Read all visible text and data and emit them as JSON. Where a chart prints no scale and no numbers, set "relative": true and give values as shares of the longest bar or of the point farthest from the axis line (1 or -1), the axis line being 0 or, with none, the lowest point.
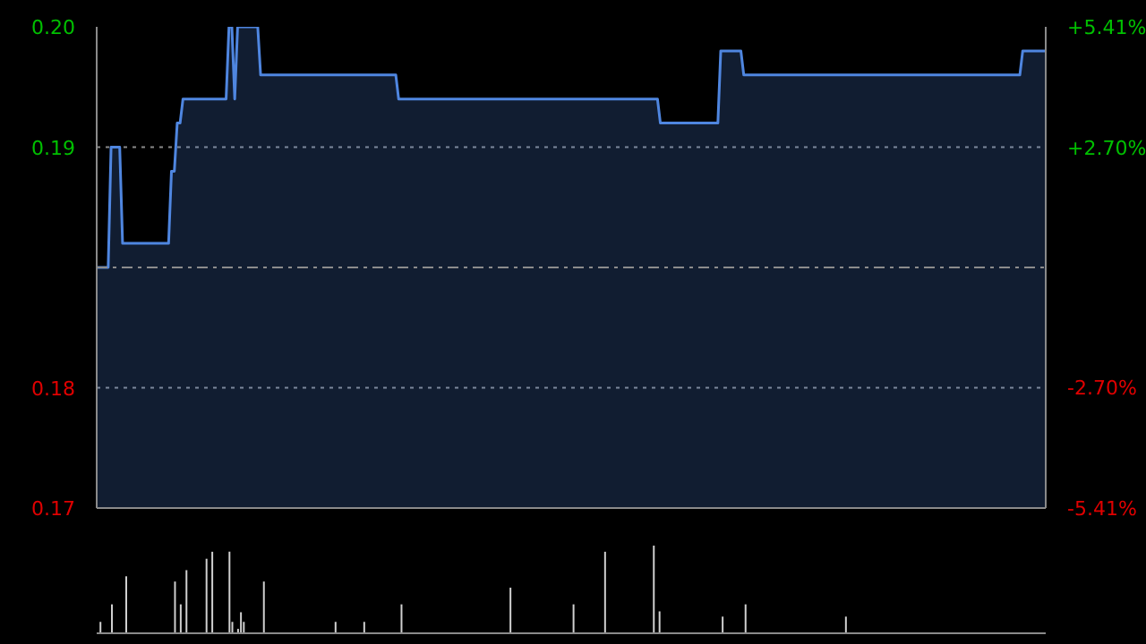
{
  "chart_data": [
    {
      "type": "area",
      "categories": [
        null,
        null,
        null,
        null,
        null,
        null,
        null,
        null,
        null,
        null,
        null,
        null,
        null,
        null,
        null,
        null,
        null,
        null,
        null,
        null,
        null,
        null,
        null,
        null,
        null,
        null,
        null,
        null,
        null,
        null,
        null,
        null,
        null,
        null,
        null,
        null,
        null,
        null,
        null,
        null,
        null,
        null,
        null,
        null,
        null,
        null,
        null,
        null,
        null,
        null,
        null,
        null,
        null,
        null,
        null,
        null,
        null,
        null,
        null,
        null,
        null,
        null,
        null,
        null,
        null,
        null,
        null,
        null,
        null,
        null,
        null,
        null,
        null,
        null,
        null,
        null,
        null,
        null,
        null,
        null,
        null,
        null,
        null,
        null,
        null,
        null,
        null,
        null,
        null,
        null,
        null,
        null,
        null,
        null,
        null,
        null,
        null,
        null,
        null,
        null,
        null,
        null,
        null,
        null,
        null,
        null,
        null,
        null,
        null,
        null,
        null,
        null,
        null,
        null,
        null,
        null,
        null,
        null,
        null,
        null,
        null,
        null,
        null,
        null,
        null,
        null,
        null,
        null,
        null,
        null,
        null,
        null,
        null,
        null,
        null,
        null,
        null,
        null,
        null,
        null,
        null,
        null,
        null,
        null,
        null,
        null,
        null,
        null,
        null,
        null,
        null,
        null,
        null,
        null,
        null,
        null,
        null,
        null,
        null,
        null,
        null,
        null,
        null,
        null,
        null,
        null,
        null,
        null,
        null,
        null,
        null,
        null,
        null,
        null,
        null,
        null,
        null,
        null,
        null,
        null,
        null,
        null,
        null,
        null,
        null,
        null,
        null,
        null,
        null,
        null,
        null,
        null,
        null,
        null,
        null,
        null,
        null,
        null,
        null,
        null,
        null,
        null,
        null,
        null,
        null,
        null,
        null,
        null,
        null,
        null,
        null,
        null,
        null,
        null,
        null,
        null,
        null,
        null,
        null,
        null,
        null,
        null,
        null,
        null,
        null,
        null,
        null,
        null,
        null,
        null,
        null,
        null,
        null,
        null,
        null,
        null,
        null,
        null,
        null,
        null,
        null,
        null,
        null,
        null,
        null,
        null,
        null,
        null,
        null,
        null,
        null,
        null,
        null,
        null,
        null,
        null,
        null,
        null,
        null,
        null,
        null,
        null,
        null,
        null,
        null,
        null,
        null,
        null,
        null,
        null,
        null,
        null,
        null,
        null,
        null,
        null,
        null,
        null,
        null,
        null,
        null,
        null,
        null,
        null,
        null,
        null,
        null,
        null,
        null,
        null,
        null,
        null,
        null,
        null,
        null,
        null,
        null,
        null,
        null,
        null,
        null,
        null,
        null,
        null,
        null,
        null,
        null,
        null,
        null,
        null,
        null,
        null,
        null,
        null,
        null,
        null,
        null,
        null,
        null,
        null,
        null,
        null,
        null,
        null,
        null,
        null,
        null,
        null,
        null,
        null,
        null
      ],
      "series": [
        {
          "color": "#4f86e0",
          "values": [
            0.185,
            0.185,
            0.185,
            0.185,
            0.185,
            0.19,
            0.19,
            0.19,
            0.19,
            0.186,
            0.186,
            0.186,
            0.186,
            0.186,
            0.186,
            0.186,
            0.186,
            0.186,
            0.186,
            0.186,
            0.186,
            0.186,
            0.186,
            0.186,
            0.186,
            0.186,
            0.189,
            0.189,
            0.191,
            0.191,
            0.192,
            0.192,
            0.192,
            0.192,
            0.192,
            0.192,
            0.192,
            0.192,
            0.192,
            0.192,
            0.192,
            0.192,
            0.192,
            0.192,
            0.192,
            0.192,
            0.195,
            0.195,
            0.192,
            0.195,
            0.195,
            0.195,
            0.195,
            0.195,
            0.195,
            0.195,
            0.195,
            0.193,
            0.193,
            0.193,
            0.193,
            0.193,
            0.193,
            0.193,
            0.193,
            0.193,
            0.193,
            0.193,
            0.193,
            0.193,
            0.193,
            0.193,
            0.193,
            0.193,
            0.193,
            0.193,
            0.193,
            0.193,
            0.193,
            0.193,
            0.193,
            0.193,
            0.193,
            0.193,
            0.193,
            0.193,
            0.193,
            0.193,
            0.193,
            0.193,
            0.193,
            0.193,
            0.193,
            0.193,
            0.193,
            0.193,
            0.193,
            0.193,
            0.193,
            0.193,
            0.193,
            0.193,
            0.193,
            0.193,
            0.193,
            0.192,
            0.192,
            0.192,
            0.192,
            0.192,
            0.192,
            0.192,
            0.192,
            0.192,
            0.192,
            0.192,
            0.192,
            0.192,
            0.192,
            0.192,
            0.192,
            0.192,
            0.192,
            0.192,
            0.192,
            0.192,
            0.192,
            0.192,
            0.192,
            0.192,
            0.192,
            0.192,
            0.192,
            0.192,
            0.192,
            0.192,
            0.192,
            0.192,
            0.192,
            0.192,
            0.192,
            0.192,
            0.192,
            0.192,
            0.192,
            0.192,
            0.192,
            0.192,
            0.192,
            0.192,
            0.192,
            0.192,
            0.192,
            0.192,
            0.192,
            0.192,
            0.192,
            0.192,
            0.192,
            0.192,
            0.192,
            0.192,
            0.192,
            0.192,
            0.192,
            0.192,
            0.192,
            0.192,
            0.192,
            0.192,
            0.192,
            0.192,
            0.192,
            0.192,
            0.192,
            0.192,
            0.192,
            0.192,
            0.192,
            0.192,
            0.192,
            0.192,
            0.192,
            0.192,
            0.192,
            0.192,
            0.192,
            0.192,
            0.192,
            0.192,
            0.192,
            0.192,
            0.192,
            0.192,
            0.192,
            0.192,
            0.191,
            0.191,
            0.191,
            0.191,
            0.191,
            0.191,
            0.191,
            0.191,
            0.191,
            0.191,
            0.191,
            0.191,
            0.191,
            0.191,
            0.191,
            0.191,
            0.191,
            0.191,
            0.191,
            0.191,
            0.191,
            0.194,
            0.194,
            0.194,
            0.194,
            0.194,
            0.194,
            0.194,
            0.194,
            0.193,
            0.193,
            0.193,
            0.193,
            0.193,
            0.193,
            0.193,
            0.193,
            0.193,
            0.193,
            0.193,
            0.193,
            0.193,
            0.193,
            0.193,
            0.193,
            0.193,
            0.193,
            0.193,
            0.193,
            0.193,
            0.193,
            0.193,
            0.193,
            0.193,
            0.193,
            0.193,
            0.193,
            0.193,
            0.193,
            0.193,
            0.193,
            0.193,
            0.193,
            0.193,
            0.193,
            0.193,
            0.193,
            0.193,
            0.193,
            0.193,
            0.193,
            0.193,
            0.193,
            0.193,
            0.193,
            0.193,
            0.193,
            0.193,
            0.193,
            0.193,
            0.193,
            0.193,
            0.193,
            0.193,
            0.193,
            0.193,
            0.193,
            0.193,
            0.193,
            0.193,
            0.193,
            0.193,
            0.193,
            0.193,
            0.193,
            0.193,
            0.193,
            0.193,
            0.193,
            0.193,
            0.193,
            0.193,
            0.193,
            0.193,
            0.193,
            0.193,
            0.193,
            0.193,
            0.193,
            0.193,
            0.193,
            0.193,
            0.193,
            0.193,
            0.193,
            0.193,
            0.193,
            0.193,
            0.193,
            0.193,
            0.193,
            0.193,
            0.193,
            0.193,
            0.193,
            0.193,
            0.194,
            0.194,
            0.194,
            0.194,
            0.194,
            0.194,
            0.194,
            0.194,
            0.194
          ]
        }
      ],
      "ylim": [
        0.175,
        0.195
      ],
      "yticks": [
        {
          "value": 0.175,
          "label": "0.17"
        },
        0.18,
        0.19,
        {
          "value": 0.195,
          "label": "0.20"
        }
      ],
      "y2lim": [
        -5.41,
        5.41
      ],
      "y2ticks": [
        {
          "value": -5.41,
          "label": "-5.41%"
        },
        {
          "value": -2.7,
          "label": "-2.70%"
        },
        {
          "value": 2.7,
          "label": "+2.70%"
        },
        {
          "value": 5.41,
          "label": "+5.41%"
        }
      ],
      "ref_lines": [
        {
          "axis": "y",
          "value": 0.185,
          "color": "#8c8c8c",
          "line_style": "dashed"
        }
      ],
      "grid": "y"
    },
    {
      "type": "bar",
      "relative": true,
      "categories": [
        null,
        null,
        null,
        null,
        null,
        null,
        null,
        null,
        null,
        null,
        null,
        null,
        null,
        null,
        null,
        null,
        null,
        null,
        null,
        null,
        null,
        null,
        null,
        null,
        null,
        null,
        null,
        null,
        null,
        null,
        null,
        null,
        null,
        null,
        null,
        null,
        null,
        null,
        null,
        null,
        null,
        null,
        null,
        null,
        null,
        null,
        null,
        null,
        null,
        null,
        null,
        null,
        null,
        null,
        null,
        null,
        null,
        null,
        null,
        null,
        null,
        null,
        null,
        null,
        null,
        null,
        null,
        null,
        null,
        null,
        null,
        null,
        null,
        null,
        null,
        null,
        null,
        null,
        null,
        null,
        null,
        null,
        null,
        null,
        null,
        null,
        null,
        null,
        null,
        null,
        null,
        null,
        null,
        null,
        null,
        null,
        null,
        null,
        null,
        null,
        null,
        null,
        null,
        null,
        null,
        null,
        null,
        null,
        null,
        null,
        null,
        null,
        null,
        null,
        null,
        null,
        null,
        null,
        null,
        null,
        null,
        null,
        null,
        null,
        null,
        null,
        null,
        null,
        null,
        null,
        null,
        null,
        null,
        null,
        null,
        null,
        null,
        null,
        null,
        null,
        null,
        null,
        null,
        null,
        null,
        null,
        null,
        null,
        null,
        null,
        null,
        null,
        null,
        null,
        null,
        null,
        null,
        null,
        null,
        null,
        null,
        null,
        null,
        null,
        null,
        null,
        null,
        null,
        null,
        null,
        null,
        null,
        null,
        null,
        null,
        null,
        null,
        null,
        null,
        null,
        null,
        null,
        null,
        null,
        null,
        null,
        null,
        null,
        null,
        null,
        null,
        null,
        null,
        null,
        null,
        null,
        null,
        null,
        null,
        null,
        null,
        null,
        null,
        null,
        null,
        null,
        null,
        null,
        null,
        null,
        null,
        null,
        null,
        null,
        null,
        null,
        null,
        null,
        null,
        null,
        null,
        null,
        null,
        null,
        null,
        null,
        null,
        null,
        null,
        null,
        null,
        null,
        null,
        null,
        null,
        null,
        null,
        null,
        null,
        null,
        null,
        null,
        null,
        null,
        null,
        null,
        null,
        null,
        null,
        null,
        null,
        null,
        null,
        null,
        null,
        null,
        null,
        null,
        null,
        null,
        null,
        null,
        null,
        null,
        null,
        null,
        null,
        null,
        null,
        null,
        null,
        null,
        null,
        null,
        null,
        null,
        null,
        null,
        null,
        null,
        null,
        null,
        null,
        null,
        null,
        null,
        null,
        null,
        null,
        null,
        null,
        null,
        null,
        null,
        null,
        null,
        null,
        null,
        null,
        null,
        null,
        null,
        null,
        null,
        null,
        null,
        null,
        null,
        null,
        null,
        null,
        null,
        null,
        null,
        null,
        null,
        null,
        null,
        null,
        null,
        null,
        null,
        null,
        null,
        null,
        null,
        null,
        null,
        null,
        null,
        null
      ],
      "values": [
        0,
        0.13,
        0,
        0,
        0,
        0.33,
        0,
        0,
        0,
        0,
        0.65,
        0,
        0,
        0,
        0,
        0,
        0,
        0,
        0,
        0,
        0,
        0,
        0,
        0,
        0,
        0,
        0,
        0.59,
        0,
        0.33,
        0,
        0.72,
        0,
        0,
        0,
        0,
        0,
        0,
        0.85,
        0,
        0.93,
        0,
        0,
        0,
        0,
        0,
        0.93,
        0.13,
        0,
        0.05,
        0.24,
        0.13,
        0,
        0,
        0,
        0,
        0,
        0,
        0.59,
        0,
        0,
        0,
        0,
        0,
        0,
        0,
        0,
        0,
        0,
        0,
        0,
        0,
        0,
        0,
        0,
        0,
        0,
        0,
        0,
        0,
        0,
        0,
        0,
        0.13,
        0,
        0,
        0,
        0,
        0,
        0,
        0,
        0,
        0,
        0.13,
        0,
        0,
        0,
        0,
        0,
        0,
        0,
        0,
        0,
        0,
        0,
        0,
        0.33,
        0,
        0,
        0,
        0,
        0,
        0,
        0,
        0,
        0,
        0,
        0,
        0,
        0,
        0,
        0,
        0,
        0,
        0,
        0,
        0,
        0,
        0,
        0,
        0,
        0,
        0,
        0,
        0,
        0,
        0,
        0,
        0,
        0,
        0,
        0,
        0,
        0,
        0.52,
        0,
        0,
        0,
        0,
        0,
        0,
        0,
        0,
        0,
        0,
        0,
        0,
        0,
        0,
        0,
        0,
        0,
        0,
        0,
        0,
        0,
        0.33,
        0,
        0,
        0,
        0,
        0,
        0,
        0,
        0,
        0,
        0,
        0.93,
        0,
        0,
        0,
        0,
        0,
        0,
        0,
        0,
        0,
        0,
        0,
        0,
        0,
        0,
        0,
        0,
        1.0,
        0,
        0.25,
        0,
        0,
        0,
        0,
        0,
        0,
        0,
        0,
        0,
        0,
        0,
        0,
        0,
        0,
        0,
        0,
        0,
        0,
        0,
        0,
        0,
        0.19,
        0,
        0,
        0,
        0,
        0,
        0,
        0,
        0.33,
        0,
        0,
        0,
        0,
        0,
        0,
        0,
        0,
        0,
        0,
        0,
        0,
        0,
        0,
        0,
        0,
        0,
        0,
        0,
        0,
        0,
        0,
        0,
        0,
        0,
        0,
        0,
        0,
        0,
        0,
        0,
        0,
        0,
        0,
        0.19,
        0,
        0,
        0,
        0,
        0,
        0,
        0,
        0,
        0,
        0,
        0,
        0,
        0,
        0,
        0,
        0,
        0,
        0,
        0,
        0,
        0,
        0,
        0,
        0,
        0,
        0,
        0,
        0,
        0,
        0,
        0,
        0,
        0,
        0,
        0,
        0,
        0,
        0,
        0,
        0,
        0,
        0,
        0,
        0,
        0,
        0,
        0,
        0,
        0,
        0,
        0,
        0,
        0,
        0,
        0,
        0,
        0,
        0,
        0,
        0,
        0,
        0,
        0,
        0,
        0,
        0,
        0,
        0,
        0
      ],
      "color": "#d0d0d0"
    }
  ]
}
